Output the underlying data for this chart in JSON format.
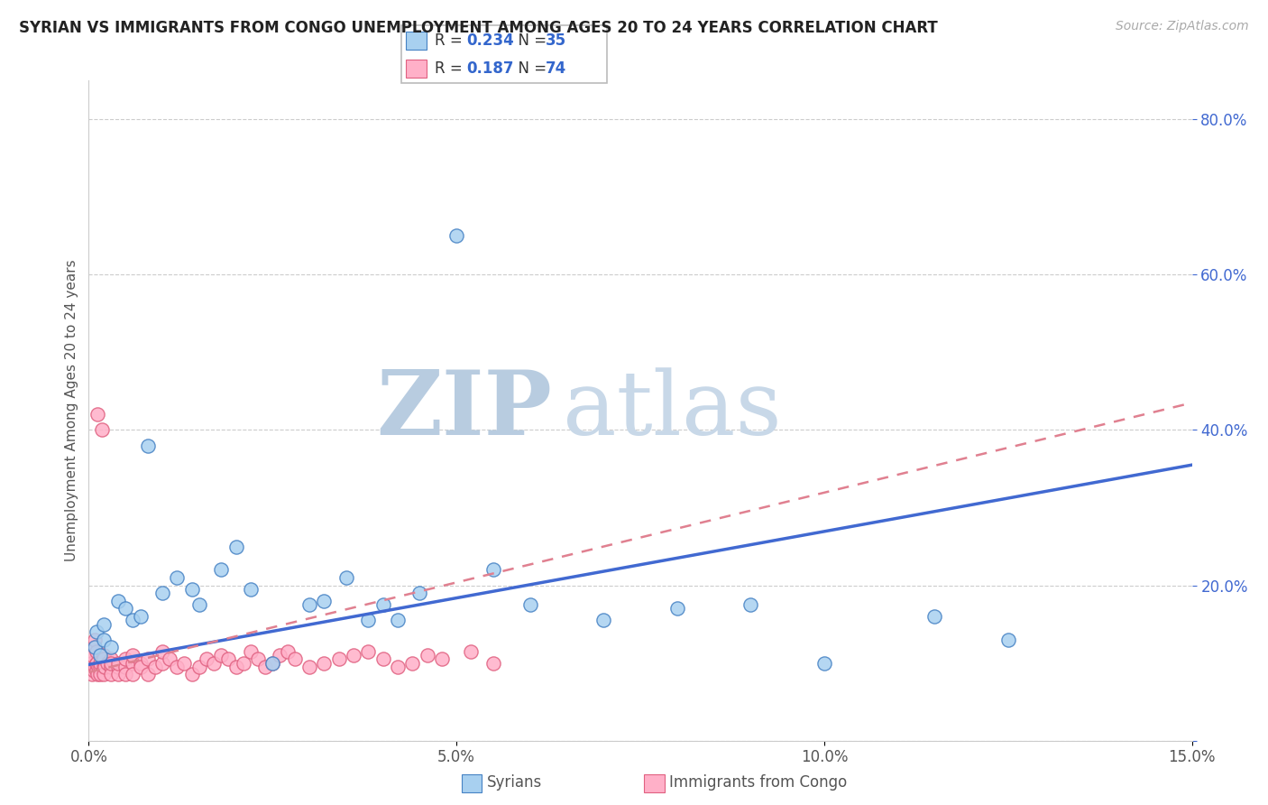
{
  "title": "SYRIAN VS IMMIGRANTS FROM CONGO UNEMPLOYMENT AMONG AGES 20 TO 24 YEARS CORRELATION CHART",
  "source": "Source: ZipAtlas.com",
  "xlabel_syrians": "Syrians",
  "xlabel_congo": "Immigrants from Congo",
  "ylabel": "Unemployment Among Ages 20 to 24 years",
  "x_min": 0.0,
  "x_max": 0.15,
  "y_min": 0.0,
  "y_max": 0.85,
  "y_ticks": [
    0.0,
    0.2,
    0.4,
    0.6,
    0.8
  ],
  "y_tick_labels": [
    "",
    "20.0%",
    "40.0%",
    "60.0%",
    "80.0%"
  ],
  "x_ticks": [
    0.0,
    0.05,
    0.1,
    0.15
  ],
  "x_tick_labels": [
    "0.0%",
    "5.0%",
    "10.0%",
    "15.0%"
  ],
  "R_syrian": 0.234,
  "N_syrian": 35,
  "R_congo": 0.187,
  "N_congo": 74,
  "color_syrian_fill": "#a8d0f0",
  "color_syrian_edge": "#4682c4",
  "color_congo_fill": "#ffb0c8",
  "color_congo_edge": "#e06080",
  "color_line_syrian": "#4169D1",
  "color_line_congo": "#e08090",
  "watermark_zip": "ZIP",
  "watermark_atlas": "atlas",
  "watermark_color": "#ccd8ea",
  "background_color": "#ffffff",
  "syr_x": [
    0.0008,
    0.001,
    0.0015,
    0.002,
    0.002,
    0.003,
    0.004,
    0.005,
    0.006,
    0.007,
    0.008,
    0.01,
    0.012,
    0.014,
    0.015,
    0.018,
    0.02,
    0.022,
    0.025,
    0.03,
    0.032,
    0.035,
    0.038,
    0.04,
    0.042,
    0.045,
    0.05,
    0.055,
    0.06,
    0.07,
    0.08,
    0.09,
    0.1,
    0.115,
    0.125
  ],
  "syr_y": [
    0.12,
    0.14,
    0.11,
    0.15,
    0.13,
    0.12,
    0.18,
    0.17,
    0.155,
    0.16,
    0.38,
    0.19,
    0.21,
    0.195,
    0.175,
    0.22,
    0.25,
    0.195,
    0.1,
    0.175,
    0.18,
    0.21,
    0.155,
    0.175,
    0.155,
    0.19,
    0.65,
    0.22,
    0.175,
    0.155,
    0.17,
    0.175,
    0.1,
    0.16,
    0.13
  ],
  "con_x": [
    0.0003,
    0.0005,
    0.0005,
    0.0007,
    0.0008,
    0.0008,
    0.0008,
    0.001,
    0.001,
    0.001,
    0.001,
    0.0012,
    0.0012,
    0.0013,
    0.0015,
    0.0015,
    0.0015,
    0.0018,
    0.002,
    0.002,
    0.002,
    0.002,
    0.0022,
    0.0025,
    0.003,
    0.003,
    0.003,
    0.003,
    0.004,
    0.004,
    0.004,
    0.005,
    0.005,
    0.005,
    0.006,
    0.006,
    0.006,
    0.007,
    0.007,
    0.008,
    0.008,
    0.009,
    0.01,
    0.01,
    0.011,
    0.012,
    0.013,
    0.014,
    0.015,
    0.016,
    0.017,
    0.018,
    0.019,
    0.02,
    0.021,
    0.022,
    0.023,
    0.024,
    0.025,
    0.026,
    0.027,
    0.028,
    0.03,
    0.032,
    0.034,
    0.036,
    0.038,
    0.04,
    0.042,
    0.044,
    0.046,
    0.048,
    0.052,
    0.055
  ],
  "con_y": [
    0.1,
    0.11,
    0.085,
    0.09,
    0.095,
    0.12,
    0.13,
    0.1,
    0.115,
    0.09,
    0.1,
    0.42,
    0.085,
    0.095,
    0.095,
    0.1,
    0.085,
    0.4,
    0.095,
    0.11,
    0.085,
    0.105,
    0.095,
    0.1,
    0.095,
    0.105,
    0.085,
    0.1,
    0.095,
    0.085,
    0.1,
    0.095,
    0.105,
    0.085,
    0.1,
    0.11,
    0.085,
    0.1,
    0.095,
    0.105,
    0.085,
    0.095,
    0.1,
    0.115,
    0.105,
    0.095,
    0.1,
    0.085,
    0.095,
    0.105,
    0.1,
    0.11,
    0.105,
    0.095,
    0.1,
    0.115,
    0.105,
    0.095,
    0.1,
    0.11,
    0.115,
    0.105,
    0.095,
    0.1,
    0.105,
    0.11,
    0.115,
    0.105,
    0.095,
    0.1,
    0.11,
    0.105,
    0.115,
    0.1
  ]
}
